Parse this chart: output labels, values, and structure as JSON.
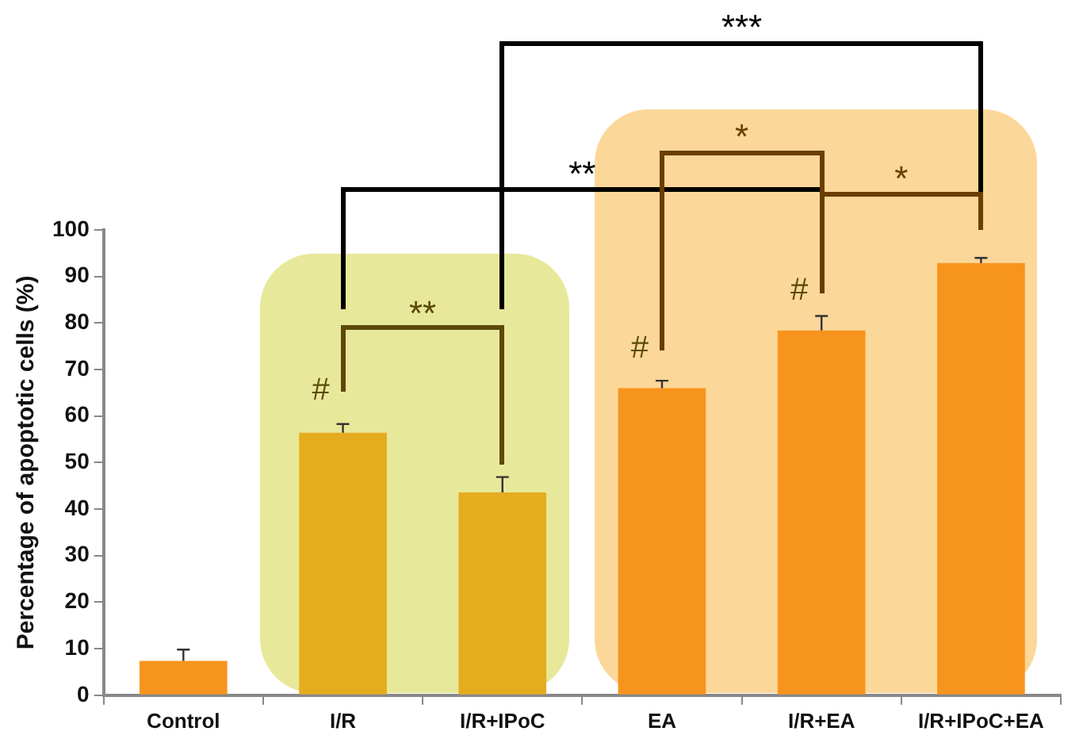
{
  "chart_data": {
    "type": "bar",
    "ylabel": "Percentage of apoptotic cells (%)",
    "categories": [
      "Control",
      "I/R",
      "I/R+IPoC",
      "EA",
      "I/R+EA",
      "I/R+IPoC+EA"
    ],
    "values": [
      7.4,
      56.4,
      43.6,
      66,
      78.4,
      92.9
    ],
    "errors": [
      2.4,
      1.9,
      3.3,
      1.6,
      3.1,
      1.1
    ],
    "colors": [
      "#f7941d",
      "#e6ac20",
      "#e6ac20",
      "#f7941d",
      "#f7941d",
      "#f7941d"
    ],
    "ylim": [
      0,
      100
    ],
    "yticks": [
      0,
      10,
      20,
      30,
      40,
      50,
      60,
      70,
      80,
      90,
      100
    ],
    "grid": false,
    "annotations": [
      "#",
      "#",
      "#",
      "**",
      "**",
      "***",
      "*",
      "*"
    ]
  }
}
